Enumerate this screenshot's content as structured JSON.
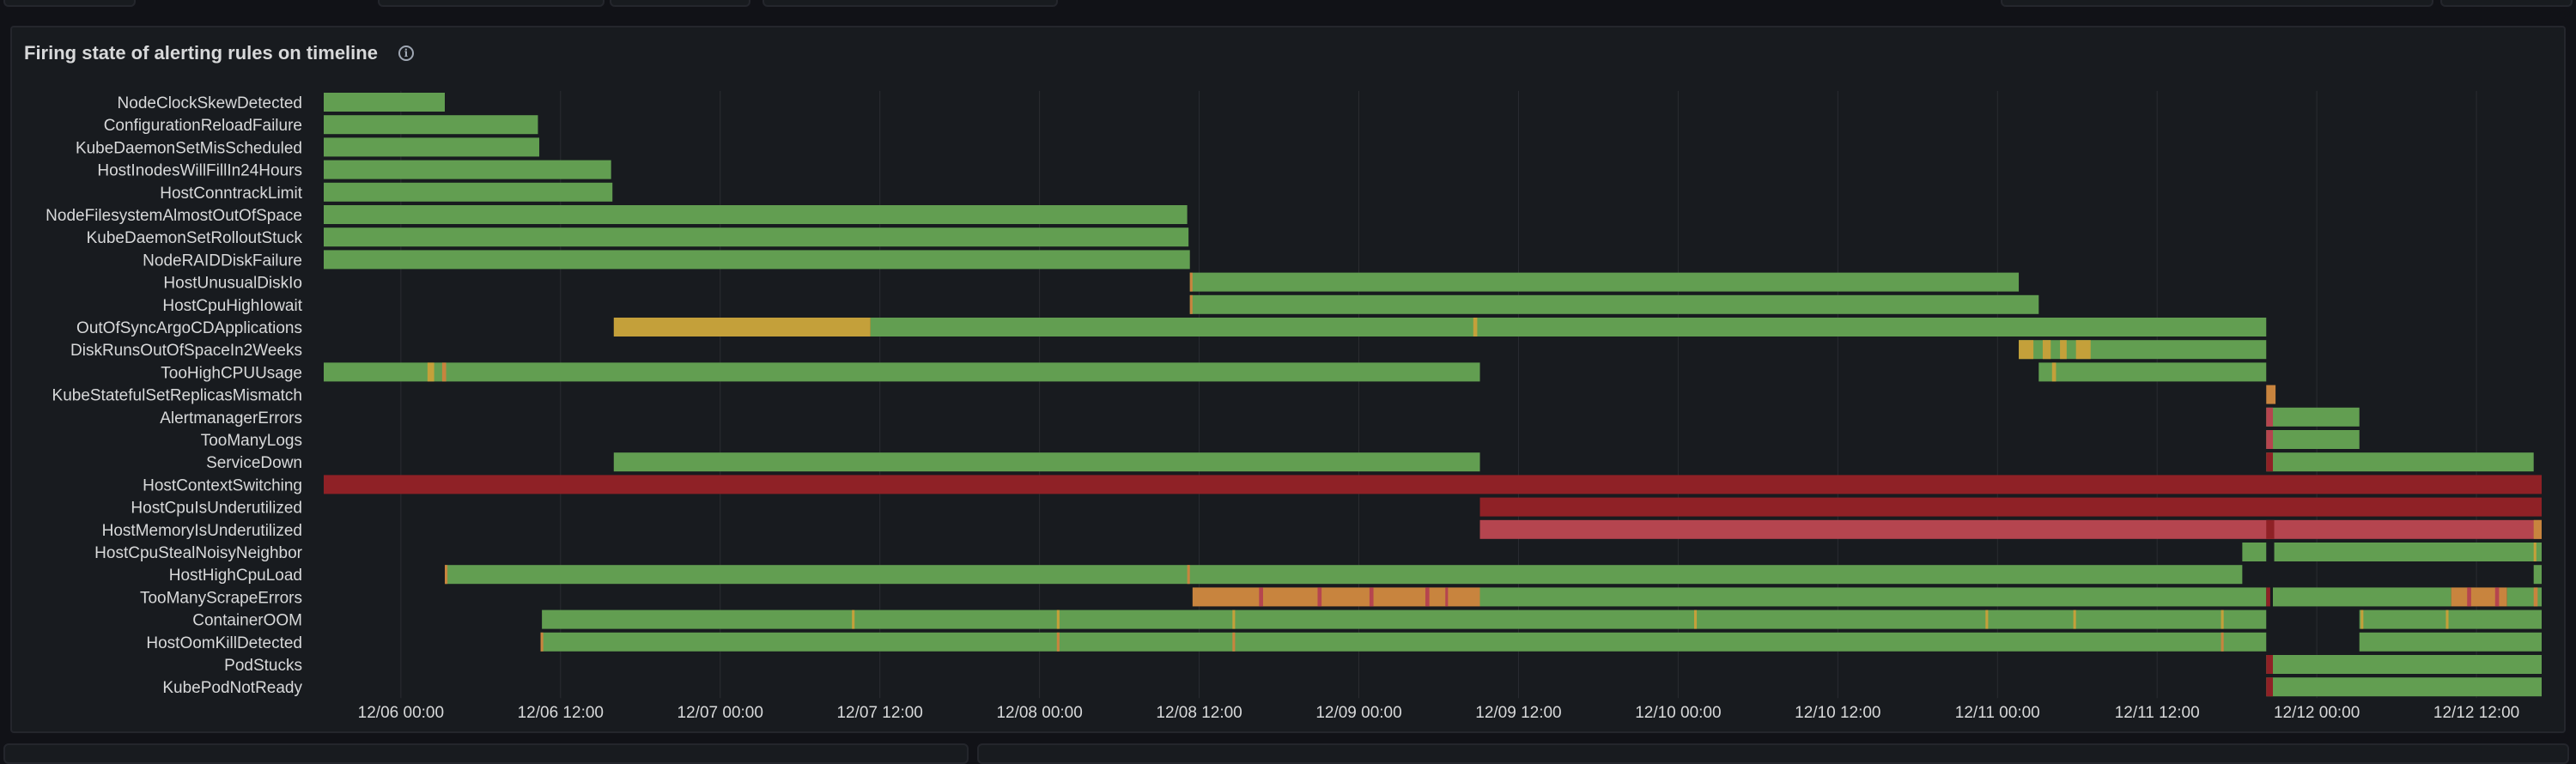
{
  "panel": {
    "title": "Firing state of alerting rules on timeline",
    "info_icon": "info-circle-icon"
  },
  "colors": {
    "background": "#181b1f",
    "grid": "#2a2c31",
    "label": "#d8d9da",
    "green": "#629e51",
    "yellow": "#c4a03a",
    "orange": "#c8843e",
    "dark_red": "#8f2126",
    "light_red": "#b5454f"
  },
  "chart_data": {
    "type": "state-timeline",
    "title": "Firing state of alerting rules on timeline",
    "x_unit": "hours since 12/06 00:00",
    "x_range": [
      -5.8,
      160.9
    ],
    "x_ticks": [
      {
        "label": "12/06 00:00",
        "x": 0
      },
      {
        "label": "12/06 12:00",
        "x": 12
      },
      {
        "label": "12/07 00:00",
        "x": 24
      },
      {
        "label": "12/07 12:00",
        "x": 36
      },
      {
        "label": "12/08 00:00",
        "x": 48
      },
      {
        "label": "12/08 12:00",
        "x": 60
      },
      {
        "label": "12/09 00:00",
        "x": 72
      },
      {
        "label": "12/09 12:00",
        "x": 84
      },
      {
        "label": "12/10 00:00",
        "x": 96
      },
      {
        "label": "12/10 12:00",
        "x": 108
      },
      {
        "label": "12/11 00:00",
        "x": 120
      },
      {
        "label": "12/11 12:00",
        "x": 132
      },
      {
        "label": "12/12 00:00",
        "x": 144
      },
      {
        "label": "12/12 12:00",
        "x": 156
      }
    ],
    "grid": true,
    "rows": [
      {
        "name": "NodeClockSkewDetected",
        "segments": [
          [
            -5.8,
            3.3,
            "green"
          ]
        ]
      },
      {
        "name": "ConfigurationReloadFailure",
        "segments": [
          [
            -5.8,
            10.3,
            "green"
          ]
        ]
      },
      {
        "name": "KubeDaemonSetMisScheduled",
        "segments": [
          [
            -5.8,
            10.4,
            "green"
          ]
        ]
      },
      {
        "name": "HostInodesWillFillIn24Hours",
        "segments": [
          [
            -5.8,
            15.8,
            "green"
          ]
        ]
      },
      {
        "name": "HostConntrackLimit",
        "segments": [
          [
            -5.8,
            15.9,
            "green"
          ]
        ]
      },
      {
        "name": "NodeFilesystemAlmostOutOfSpace",
        "segments": [
          [
            -5.8,
            59.1,
            "green"
          ]
        ]
      },
      {
        "name": "KubeDaemonSetRolloutStuck",
        "segments": [
          [
            -5.8,
            59.2,
            "green"
          ]
        ]
      },
      {
        "name": "NodeRAIDDiskFailure",
        "segments": [
          [
            -5.8,
            59.3,
            "green"
          ]
        ]
      },
      {
        "name": "HostUnusualDiskIo",
        "segments": [
          [
            59.3,
            121.6,
            "green"
          ],
          [
            59.3,
            59.5,
            "orange"
          ]
        ]
      },
      {
        "name": "HostCpuHighIowait",
        "segments": [
          [
            59.3,
            123.1,
            "green"
          ],
          [
            59.3,
            59.5,
            "orange"
          ]
        ]
      },
      {
        "name": "OutOfSyncArgoCDApplications",
        "segments": [
          [
            16.0,
            35.3,
            "yellow"
          ],
          [
            35.3,
            140.2,
            "green"
          ],
          [
            80.6,
            80.9,
            "yellow"
          ]
        ]
      },
      {
        "name": "DiskRunsOutOfSpaceIn2Weeks",
        "segments": [
          [
            121.6,
            140.2,
            "green"
          ],
          [
            121.6,
            122.7,
            "yellow"
          ],
          [
            123.4,
            124.0,
            "yellow"
          ],
          [
            124.7,
            125.2,
            "yellow"
          ],
          [
            125.9,
            127.0,
            "yellow"
          ]
        ]
      },
      {
        "name": "TooHighCPUUsage",
        "segments": [
          [
            -5.8,
            81.1,
            "green"
          ],
          [
            2.0,
            2.5,
            "yellow"
          ],
          [
            3.1,
            3.4,
            "orange"
          ],
          [
            123.1,
            140.2,
            "green"
          ],
          [
            124.1,
            124.4,
            "yellow"
          ]
        ]
      },
      {
        "name": "KubeStatefulSetReplicasMismatch",
        "segments": [
          [
            140.2,
            140.9,
            "orange"
          ]
        ]
      },
      {
        "name": "AlertmanagerErrors",
        "segments": [
          [
            140.2,
            147.2,
            "green"
          ],
          [
            140.2,
            140.7,
            "light_red"
          ]
        ]
      },
      {
        "name": "TooManyLogs",
        "segments": [
          [
            140.2,
            147.2,
            "green"
          ],
          [
            140.2,
            140.7,
            "light_red"
          ]
        ]
      },
      {
        "name": "ServiceDown",
        "segments": [
          [
            16.0,
            81.1,
            "green"
          ],
          [
            140.2,
            160.3,
            "green"
          ],
          [
            140.2,
            140.7,
            "dark_red"
          ]
        ]
      },
      {
        "name": "HostContextSwitching",
        "segments": [
          [
            -5.8,
            160.9,
            "dark_red"
          ]
        ]
      },
      {
        "name": "HostCpuIsUnderutilized",
        "segments": [
          [
            81.1,
            160.9,
            "dark_red"
          ]
        ]
      },
      {
        "name": "HostMemoryIsUnderutilized",
        "segments": [
          [
            81.1,
            160.9,
            "light_red"
          ],
          [
            140.2,
            140.8,
            "dark_red"
          ],
          [
            160.3,
            160.9,
            "orange"
          ]
        ]
      },
      {
        "name": "HostCpuStealNoisyNeighbor",
        "segments": [
          [
            138.4,
            140.2,
            "green"
          ],
          [
            140.8,
            160.9,
            "green"
          ],
          [
            160.3,
            160.5,
            "yellow"
          ]
        ]
      },
      {
        "name": "HostHighCpuLoad",
        "segments": [
          [
            3.3,
            138.4,
            "green"
          ],
          [
            3.3,
            3.5,
            "orange"
          ],
          [
            59.1,
            59.3,
            "orange"
          ],
          [
            160.3,
            160.9,
            "green"
          ]
        ]
      },
      {
        "name": "TooManyScrapeErrors",
        "segments": [
          [
            59.5,
            81.1,
            "orange"
          ],
          [
            64.5,
            64.8,
            "light_red"
          ],
          [
            68.9,
            69.2,
            "light_red"
          ],
          [
            72.8,
            73.1,
            "light_red"
          ],
          [
            77.0,
            77.3,
            "light_red"
          ],
          [
            78.5,
            78.7,
            "light_red"
          ],
          [
            81.1,
            140.2,
            "green"
          ],
          [
            140.2,
            140.5,
            "dark_red"
          ],
          [
            140.7,
            154.1,
            "green"
          ],
          [
            154.1,
            158.3,
            "orange"
          ],
          [
            155.3,
            155.6,
            "light_red"
          ],
          [
            157.4,
            157.7,
            "light_red"
          ],
          [
            158.3,
            160.9,
            "green"
          ],
          [
            160.3,
            160.6,
            "orange"
          ]
        ]
      },
      {
        "name": "ContainerOOM",
        "segments": [
          [
            10.6,
            140.2,
            "green"
          ],
          [
            33.9,
            34.1,
            "yellow"
          ],
          [
            49.3,
            49.5,
            "yellow"
          ],
          [
            62.5,
            62.7,
            "yellow"
          ],
          [
            97.2,
            97.4,
            "yellow"
          ],
          [
            119.1,
            119.3,
            "yellow"
          ],
          [
            125.7,
            125.9,
            "yellow"
          ],
          [
            136.8,
            137.0,
            "yellow"
          ],
          [
            147.2,
            160.9,
            "green"
          ],
          [
            147.3,
            147.5,
            "yellow"
          ],
          [
            153.7,
            153.9,
            "yellow"
          ]
        ]
      },
      {
        "name": "HostOomKillDetected",
        "segments": [
          [
            10.5,
            140.2,
            "green"
          ],
          [
            10.5,
            10.7,
            "orange"
          ],
          [
            49.3,
            49.5,
            "orange"
          ],
          [
            62.5,
            62.7,
            "orange"
          ],
          [
            136.8,
            137.0,
            "orange"
          ],
          [
            147.2,
            160.9,
            "green"
          ]
        ]
      },
      {
        "name": "PodStucks",
        "segments": [
          [
            140.2,
            160.9,
            "green"
          ],
          [
            140.2,
            140.7,
            "dark_red"
          ]
        ]
      },
      {
        "name": "KubePodNotReady",
        "segments": [
          [
            140.2,
            160.9,
            "green"
          ],
          [
            140.2,
            140.7,
            "dark_red"
          ]
        ]
      }
    ]
  }
}
